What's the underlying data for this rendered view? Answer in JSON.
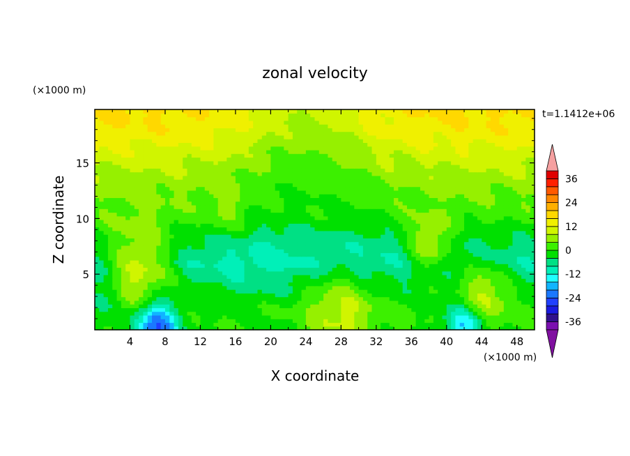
{
  "chart_data": {
    "type": "heatmap",
    "subtype": "filled-contour",
    "title": "zonal velocity",
    "xlabel": "X coordinate",
    "ylabel": "Z coordinate",
    "x_unit": "(×1000 m)",
    "z_unit": "(×1000 m)",
    "time_label": "t=1.1412e+06",
    "xlim": [
      0,
      50
    ],
    "zlim": [
      0,
      19.8
    ],
    "x_ticks": [
      4,
      8,
      12,
      16,
      20,
      24,
      28,
      32,
      36,
      40,
      44,
      48
    ],
    "z_ticks": [
      5,
      10,
      15
    ],
    "colorbar": {
      "levels": [
        -40,
        -36,
        -32,
        -28,
        -24,
        -20,
        -16,
        -12,
        -8,
        -4,
        0,
        4,
        8,
        12,
        16,
        20,
        24,
        28,
        32,
        36,
        40
      ],
      "tick_labels": [
        "36",
        "24",
        "12",
        "0",
        "-12",
        "-24",
        "-36"
      ],
      "tick_values": [
        36,
        24,
        12,
        0,
        -12,
        -24,
        -36
      ],
      "colors": [
        "#7a10b0",
        "#30108c",
        "#1a1ae0",
        "#2040ff",
        "#1a78ff",
        "#10b4ff",
        "#20ffff",
        "#00f0b8",
        "#00e084",
        "#00e000",
        "#3cf000",
        "#96f000",
        "#d0f500",
        "#f0f000",
        "#ffd800",
        "#ffb000",
        "#ff8800",
        "#ff5a00",
        "#ff2000",
        "#e00000"
      ],
      "over_color": "#f5a0a0",
      "under_color": "#8010a0"
    },
    "field_description": "zonal velocity u(x,z); approx values in m/s",
    "z_profile": [
      {
        "z": 0.5,
        "u": 0
      },
      {
        "z": 2,
        "u": 0
      },
      {
        "z": 4,
        "u": -4
      },
      {
        "z": 6,
        "u": -8
      },
      {
        "z": 8,
        "u": -5
      },
      {
        "z": 10,
        "u": 1
      },
      {
        "z": 12,
        "u": 4
      },
      {
        "z": 14,
        "u": 7
      },
      {
        "z": 16,
        "u": 11
      },
      {
        "z": 18,
        "u": 15
      },
      {
        "z": 19.8,
        "u": 17
      }
    ],
    "features": [
      {
        "x": 7,
        "z": 0.4,
        "u": -26,
        "r": 2.5
      },
      {
        "x": 42,
        "z": 0.4,
        "u": -18,
        "r": 2.2
      },
      {
        "x": 5,
        "z": 5.5,
        "u": 9,
        "r": 4
      },
      {
        "x": 28,
        "z": 2,
        "u": 10,
        "r": 4
      },
      {
        "x": 44,
        "z": 3.5,
        "u": 9,
        "r": 3
      },
      {
        "x": 38,
        "z": 7.5,
        "u": 7,
        "r": 2.5
      },
      {
        "x": 15,
        "z": 10.5,
        "u": 6,
        "r": 2.5
      },
      {
        "x": 24,
        "z": 19.5,
        "u": 8,
        "r": 8
      },
      {
        "x": 18,
        "z": 6.5,
        "u": -9,
        "r": 6
      },
      {
        "x": 30,
        "z": 7,
        "u": -8,
        "r": 5
      },
      {
        "x": 1,
        "z": 2.5,
        "u": -8,
        "r": 2.5
      }
    ]
  }
}
